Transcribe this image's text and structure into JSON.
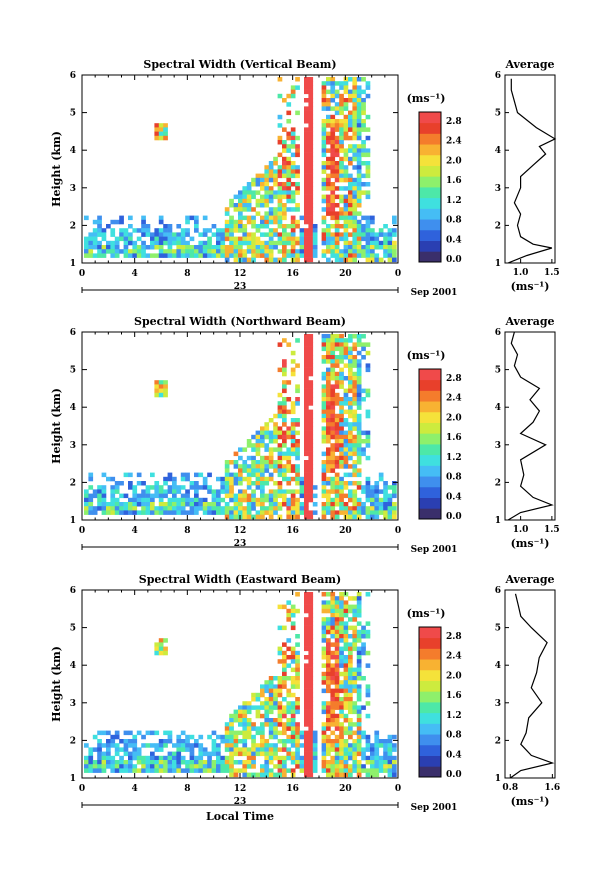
{
  "colors": [
    "#3a2f6b",
    "#2a3fb2",
    "#2f62dc",
    "#3f8fee",
    "#45bdf5",
    "#3fe0df",
    "#4de8a8",
    "#8ef06b",
    "#cdeb3e",
    "#f5e23a",
    "#f8b232",
    "#f47c2c",
    "#e8402b",
    "#f04a4a"
  ],
  "colorbar": {
    "unit": "(ms⁻¹)",
    "labels": [
      "2.8",
      "2.4",
      "2.0",
      "1.6",
      "1.2",
      "0.8",
      "0.4",
      "0.0"
    ]
  },
  "x_axis": {
    "tick_labels": [
      "0",
      "4",
      "8",
      "12",
      "16",
      "20",
      "0"
    ],
    "day_label": "23",
    "date_label": "Sep 2001",
    "time_label": "Local Time"
  },
  "y_axis": {
    "label": "Height (km)",
    "tick_labels": [
      "1",
      "2",
      "3",
      "4",
      "5",
      "6"
    ]
  },
  "average": {
    "title": "Average",
    "unit_label": "(ms⁻¹)"
  },
  "panels": [
    {
      "title": "Spectral Width (Vertical Beam)",
      "avg_ticks": [
        "1.0",
        "1.5"
      ],
      "avg_xlim": [
        0.75,
        1.55
      ]
    },
    {
      "title": "Spectral Width (Northward Beam)",
      "avg_ticks": [
        "1.0",
        "1.5"
      ],
      "avg_xlim": [
        0.75,
        1.55
      ]
    },
    {
      "title": "Spectral Width (Eastward Beam)",
      "avg_ticks": [
        "0.8",
        "1.6"
      ],
      "avg_xlim": [
        0.7,
        1.65
      ]
    }
  ],
  "chart_data": [
    {
      "type": "heatmap",
      "title": "Spectral Width (Vertical Beam)",
      "xlabel": "",
      "ylabel": "Height (km)",
      "x_range_hours": [
        0,
        24
      ],
      "ylim": [
        1,
        6
      ],
      "color_range": [
        0.0,
        2.8
      ],
      "average_profile": {
        "type": "line",
        "title": "Average",
        "xlabel": "(ms⁻¹)",
        "xlim": [
          0.75,
          1.55
        ],
        "ylim": [
          1,
          6
        ],
        "height": [
          1.0,
          1.2,
          1.4,
          1.5,
          1.7,
          2.0,
          2.3,
          2.6,
          3.0,
          3.3,
          3.6,
          3.9,
          4.1,
          4.3,
          4.6,
          5.0,
          5.3,
          5.6,
          5.9
        ],
        "value": [
          0.8,
          1.1,
          1.5,
          1.2,
          1.0,
          0.95,
          1.0,
          0.9,
          1.0,
          1.0,
          1.2,
          1.4,
          1.3,
          1.55,
          1.25,
          0.95,
          0.9,
          0.85,
          0.85
        ]
      }
    },
    {
      "type": "heatmap",
      "title": "Spectral Width (Northward Beam)",
      "xlabel": "",
      "ylabel": "Height (km)",
      "x_range_hours": [
        0,
        24
      ],
      "ylim": [
        1,
        6
      ],
      "color_range": [
        0.0,
        2.8
      ],
      "average_profile": {
        "type": "line",
        "title": "Average",
        "xlabel": "(ms⁻¹)",
        "xlim": [
          0.75,
          1.55
        ],
        "ylim": [
          1,
          6
        ],
        "height": [
          1.0,
          1.2,
          1.4,
          1.6,
          1.9,
          2.2,
          2.6,
          3.0,
          3.3,
          3.6,
          3.9,
          4.2,
          4.5,
          4.8,
          5.1,
          5.4,
          5.7,
          6.0
        ],
        "value": [
          0.8,
          1.0,
          1.5,
          1.2,
          1.0,
          1.05,
          1.0,
          1.4,
          1.0,
          1.2,
          1.3,
          1.15,
          1.3,
          1.0,
          0.9,
          0.95,
          0.85,
          0.9
        ]
      }
    },
    {
      "type": "heatmap",
      "title": "Spectral Width (Eastward Beam)",
      "xlabel": "Local Time",
      "ylabel": "Height (km)",
      "x_range_hours": [
        0,
        24
      ],
      "ylim": [
        1,
        6
      ],
      "color_range": [
        0.0,
        2.8
      ],
      "average_profile": {
        "type": "line",
        "title": "Average",
        "xlabel": "(ms⁻¹)",
        "xlim": [
          0.7,
          1.65
        ],
        "ylim": [
          1,
          6
        ],
        "height": [
          1.0,
          1.2,
          1.4,
          1.6,
          1.9,
          2.2,
          2.6,
          3.0,
          3.4,
          3.8,
          4.2,
          4.6,
          5.0,
          5.3,
          5.6,
          5.9
        ],
        "value": [
          0.8,
          1.0,
          1.6,
          1.2,
          1.0,
          1.1,
          1.15,
          1.4,
          1.2,
          1.3,
          1.35,
          1.5,
          1.2,
          1.0,
          0.95,
          0.9
        ]
      }
    }
  ]
}
